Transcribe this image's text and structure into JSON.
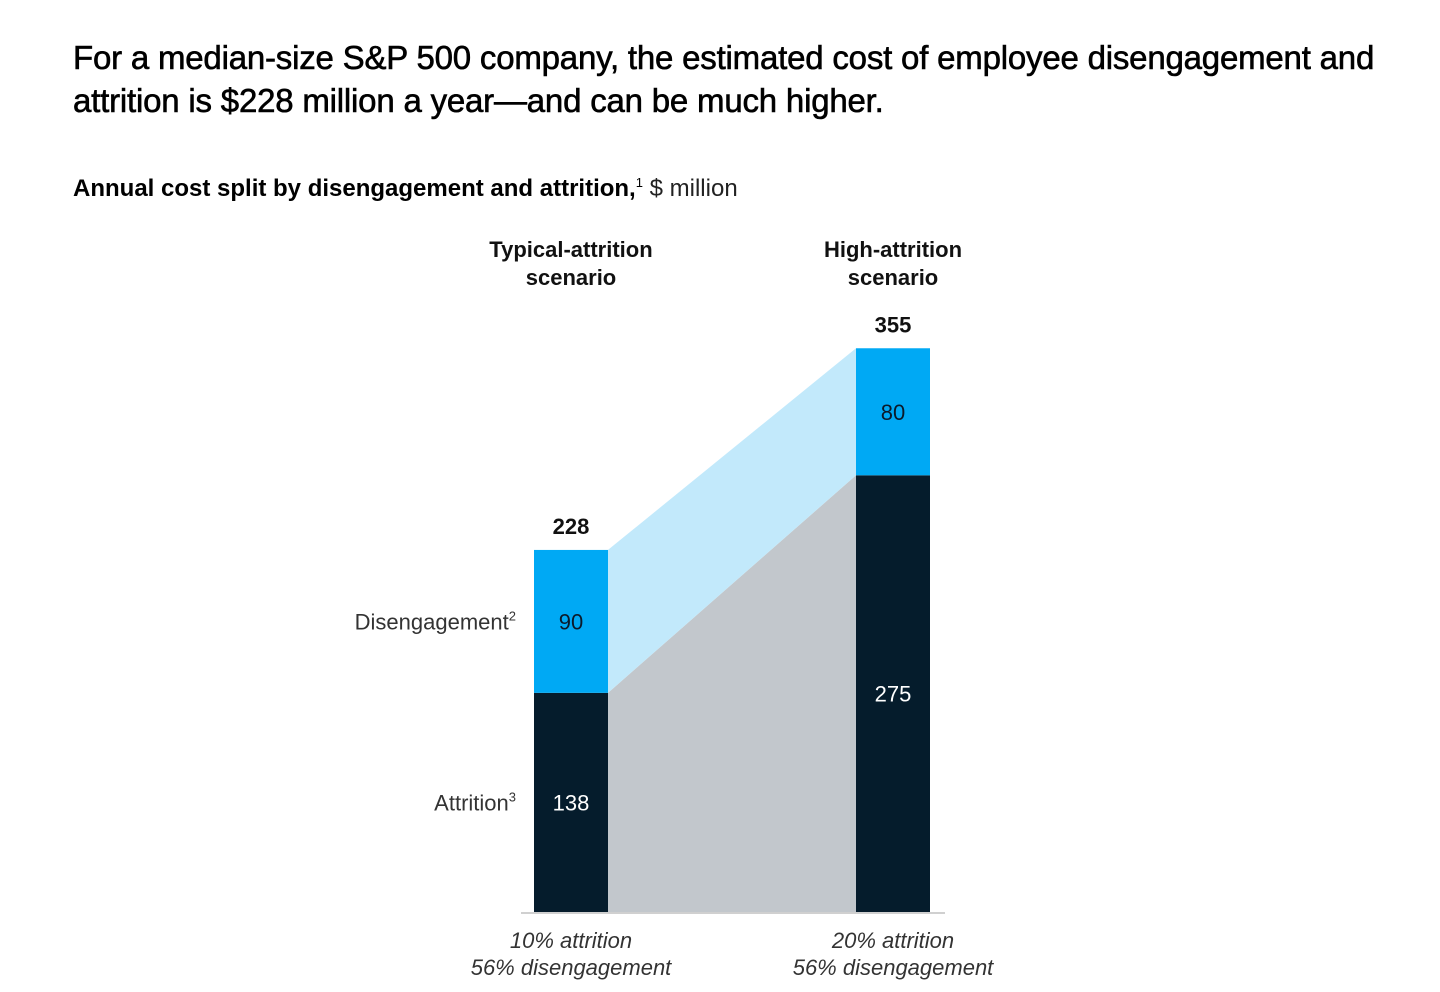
{
  "header": {
    "title": "For a median-size S&P 500 company, the estimated cost of employee disengagement and attrition is $228 million a year—and can be much higher.",
    "subtitle_bold": "Annual cost split by disengagement and attrition,",
    "subtitle_footnote": "1",
    "subtitle_unit": " $ million"
  },
  "colors": {
    "disengagement": "#00A9F4",
    "attrition": "#051C2C",
    "disengagement_bridge": "#C2E9FB",
    "attrition_bridge": "#C2C7CC",
    "baseline": "#D0D0D0"
  },
  "chart_data": {
    "type": "bar",
    "stacked": true,
    "title": "Annual cost split by disengagement and attrition, $ million",
    "categories": [
      "Typical-attrition scenario",
      "High-attrition scenario"
    ],
    "category_labels": [
      [
        "Typical-attrition",
        "scenario"
      ],
      [
        "High-attrition",
        "scenario"
      ]
    ],
    "x_sublabels": [
      [
        "10% attrition",
        "56% disengagement"
      ],
      [
        "20% attrition",
        "56% disengagement"
      ]
    ],
    "series": [
      {
        "name": "Attrition",
        "footnote": "3",
        "values": [
          138,
          275
        ]
      },
      {
        "name": "Disengagement",
        "footnote": "2",
        "values": [
          90,
          80
        ]
      }
    ],
    "totals": [
      228,
      355
    ],
    "ylim": [
      0,
      355
    ],
    "grid": false,
    "legend": "left-inline",
    "xlabel": "",
    "ylabel": ""
  }
}
